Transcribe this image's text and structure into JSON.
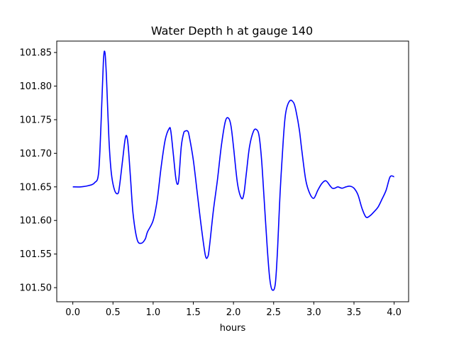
{
  "chart_data": {
    "type": "line",
    "title": "Water Depth h at gauge 140",
    "xlabel": "hours",
    "ylabel": "",
    "xlim": [
      -0.2,
      4.18
    ],
    "ylim": [
      101.479,
      101.867
    ],
    "xticks": [
      0.0,
      0.5,
      1.0,
      1.5,
      2.0,
      2.5,
      3.0,
      3.5,
      4.0
    ],
    "xtick_labels": [
      "0.0",
      "0.5",
      "1.0",
      "1.5",
      "2.0",
      "2.5",
      "3.0",
      "3.5",
      "4.0"
    ],
    "yticks": [
      101.5,
      101.55,
      101.6,
      101.65,
      101.7,
      101.75,
      101.8,
      101.85
    ],
    "ytick_labels": [
      "101.50",
      "101.55",
      "101.60",
      "101.65",
      "101.70",
      "101.75",
      "101.80",
      "101.85"
    ],
    "grid": false,
    "series": [
      {
        "color": "#0000ff",
        "x": [
          0.0,
          0.1,
          0.2,
          0.27,
          0.32,
          0.35,
          0.38,
          0.4,
          0.42,
          0.45,
          0.48,
          0.52,
          0.56,
          0.58,
          0.62,
          0.65,
          0.67,
          0.69,
          0.72,
          0.75,
          0.8,
          0.85,
          0.9,
          0.93,
          1.0,
          1.05,
          1.1,
          1.15,
          1.2,
          1.22,
          1.25,
          1.28,
          1.3,
          1.32,
          1.35,
          1.38,
          1.4,
          1.43,
          1.45,
          1.5,
          1.55,
          1.6,
          1.65,
          1.68,
          1.7,
          1.75,
          1.8,
          1.85,
          1.9,
          1.94,
          1.97,
          2.0,
          2.05,
          2.1,
          2.13,
          2.16,
          2.2,
          2.25,
          2.29,
          2.32,
          2.35,
          2.38,
          2.42,
          2.45,
          2.48,
          2.52,
          2.55,
          2.58,
          2.62,
          2.65,
          2.7,
          2.75,
          2.78,
          2.82,
          2.85,
          2.9,
          2.95,
          3.0,
          3.05,
          3.1,
          3.15,
          3.2,
          3.23,
          3.26,
          3.3,
          3.35,
          3.4,
          3.45,
          3.5,
          3.55,
          3.6,
          3.65,
          3.7,
          3.75,
          3.8,
          3.85,
          3.9,
          3.95,
          4.0
        ],
        "values": [
          101.65,
          101.65,
          101.652,
          101.656,
          101.67,
          101.74,
          101.835,
          101.85,
          101.81,
          101.72,
          101.67,
          101.645,
          101.64,
          101.65,
          101.69,
          101.72,
          101.726,
          101.71,
          101.66,
          101.61,
          101.572,
          101.566,
          101.572,
          101.583,
          101.6,
          101.63,
          101.68,
          101.72,
          101.737,
          101.733,
          101.7,
          101.665,
          101.654,
          101.662,
          101.71,
          101.73,
          101.733,
          101.733,
          101.725,
          101.69,
          101.64,
          101.59,
          101.548,
          101.546,
          101.56,
          101.615,
          101.66,
          101.712,
          101.748,
          101.752,
          101.74,
          101.71,
          101.655,
          101.633,
          101.64,
          101.67,
          101.71,
          101.733,
          101.735,
          101.725,
          101.69,
          101.635,
          101.56,
          101.515,
          101.497,
          101.505,
          101.56,
          101.64,
          101.72,
          101.76,
          101.778,
          101.775,
          101.762,
          101.735,
          101.705,
          101.66,
          101.64,
          101.633,
          101.645,
          101.655,
          101.659,
          101.652,
          101.648,
          101.648,
          101.65,
          101.648,
          101.65,
          101.651,
          101.648,
          101.638,
          101.618,
          101.605,
          101.607,
          101.613,
          101.62,
          101.632,
          101.645,
          101.665,
          101.665
        ]
      }
    ]
  }
}
